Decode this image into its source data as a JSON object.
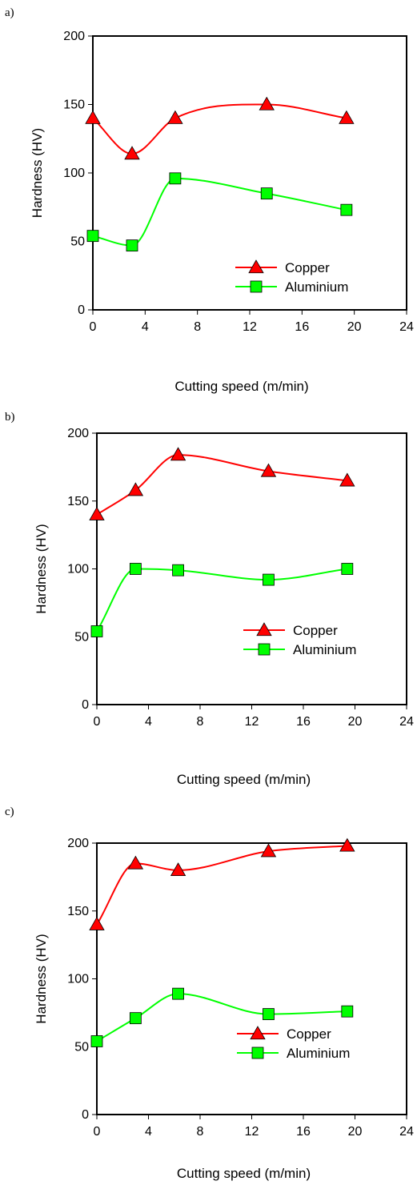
{
  "chart_data": [
    {
      "type": "line",
      "panel_label": "a)",
      "xlabel": "Cutting speed (m/min)",
      "ylabel": "Hardness (HV)",
      "xlim": [
        0,
        24
      ],
      "ylim": [
        0,
        200
      ],
      "xticks": [
        0,
        4,
        8,
        12,
        16,
        20,
        24
      ],
      "yticks": [
        0,
        50,
        100,
        150,
        200
      ],
      "x_tick_labels": [
        "0",
        "4",
        "8",
        "12",
        "16",
        "20",
        "24"
      ],
      "y_tick_labels": [
        "0",
        "50",
        "100",
        "150",
        "200"
      ],
      "grid": false,
      "legend_position": "bottom-right",
      "series": [
        {
          "name": "Copper",
          "marker": "triangle",
          "color": "#ff0000",
          "x": [
            0,
            3,
            6.3,
            13.3,
            19.4
          ],
          "values": [
            140,
            114,
            140,
            150,
            140
          ]
        },
        {
          "name": "Aluminium",
          "marker": "square",
          "color": "#00ff00",
          "x": [
            0,
            3,
            6.3,
            13.3,
            19.4
          ],
          "values": [
            54,
            47,
            96,
            85,
            73
          ]
        }
      ]
    },
    {
      "type": "line",
      "panel_label": "b)",
      "xlabel": "Cutting speed (m/min)",
      "ylabel": "Hardness (HV)",
      "xlim": [
        0,
        24
      ],
      "ylim": [
        0,
        200
      ],
      "xticks": [
        0,
        4,
        8,
        12,
        16,
        20,
        24
      ],
      "yticks": [
        0,
        50,
        100,
        150,
        200
      ],
      "x_tick_labels": [
        "0",
        "4",
        "8",
        "12",
        "16",
        "20",
        "24"
      ],
      "y_tick_labels": [
        "0",
        "50",
        "100",
        "150",
        "200"
      ],
      "grid": false,
      "legend_position": "right",
      "series": [
        {
          "name": "Copper",
          "marker": "triangle",
          "color": "#ff0000",
          "x": [
            0,
            3,
            6.3,
            13.3,
            19.4
          ],
          "values": [
            140,
            158,
            184,
            172,
            165
          ]
        },
        {
          "name": "Aluminium",
          "marker": "square",
          "color": "#00ff00",
          "x": [
            0,
            3,
            6.3,
            13.3,
            19.4
          ],
          "values": [
            54,
            100,
            99,
            92,
            100
          ]
        }
      ]
    },
    {
      "type": "line",
      "panel_label": "c)",
      "xlabel": "Cutting speed (m/min)",
      "ylabel": "Hardness (HV)",
      "xlim": [
        0,
        24
      ],
      "ylim": [
        0,
        200
      ],
      "xticks": [
        0,
        4,
        8,
        12,
        16,
        20,
        24
      ],
      "yticks": [
        0,
        50,
        100,
        150,
        200
      ],
      "x_tick_labels": [
        "0",
        "4",
        "8",
        "12",
        "16",
        "20",
        "24"
      ],
      "y_tick_labels": [
        "0",
        "50",
        "100",
        "150",
        "200"
      ],
      "grid": false,
      "legend_position": "bottom-right",
      "series": [
        {
          "name": "Copper",
          "marker": "triangle",
          "color": "#ff0000",
          "x": [
            0,
            3,
            6.3,
            13.3,
            19.4
          ],
          "values": [
            140,
            185,
            180,
            194,
            198
          ]
        },
        {
          "name": "Aluminium",
          "marker": "square",
          "color": "#00ff00",
          "x": [
            0,
            3,
            6.3,
            13.3,
            19.4
          ],
          "values": [
            54,
            71,
            89,
            74,
            76
          ]
        }
      ]
    }
  ]
}
